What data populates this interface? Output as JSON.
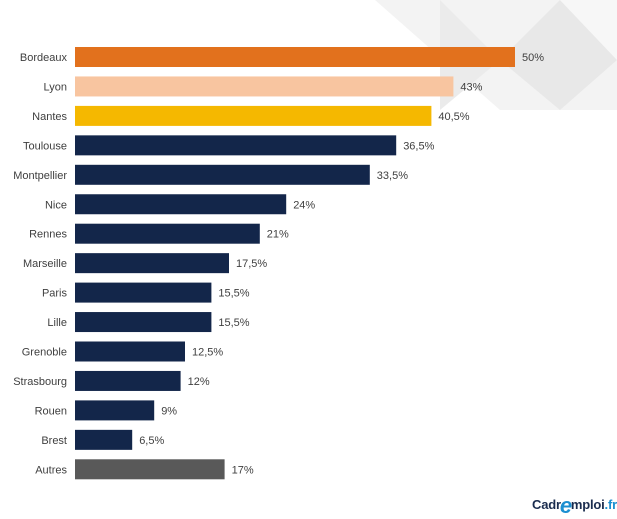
{
  "chart_data": {
    "type": "bar",
    "orientation": "horizontal",
    "categories": [
      "Bordeaux",
      "Lyon",
      "Nantes",
      "Toulouse",
      "Montpellier",
      "Nice",
      "Rennes",
      "Marseille",
      "Paris",
      "Lille",
      "Grenoble",
      "Strasbourg",
      "Rouen",
      "Brest",
      "Autres"
    ],
    "values": [
      50,
      43,
      40.5,
      36.5,
      33.5,
      24,
      21,
      17.5,
      15.5,
      15.5,
      12.5,
      12,
      9,
      6.5,
      17
    ],
    "value_labels": [
      "50%",
      "43%",
      "40,5%",
      "36,5%",
      "33,5%",
      "24%",
      "21%",
      "17,5%",
      "15,5%",
      "15,5%",
      "12,5%",
      "12%",
      "9%",
      "6,5%",
      "17%"
    ],
    "colors": [
      "#e2711d",
      "#f8c5a0",
      "#f5b800",
      "#13264a",
      "#13264a",
      "#13264a",
      "#13264a",
      "#13264a",
      "#13264a",
      "#13264a",
      "#13264a",
      "#13264a",
      "#13264a",
      "#13264a",
      "#595959"
    ],
    "xlim": [
      0,
      50
    ],
    "grid": false,
    "legend": "none",
    "title": "",
    "xlabel": "",
    "ylabel": ""
  },
  "logo": {
    "part1": "Cadr",
    "part2": "mploi",
    "tld": ".fr"
  }
}
